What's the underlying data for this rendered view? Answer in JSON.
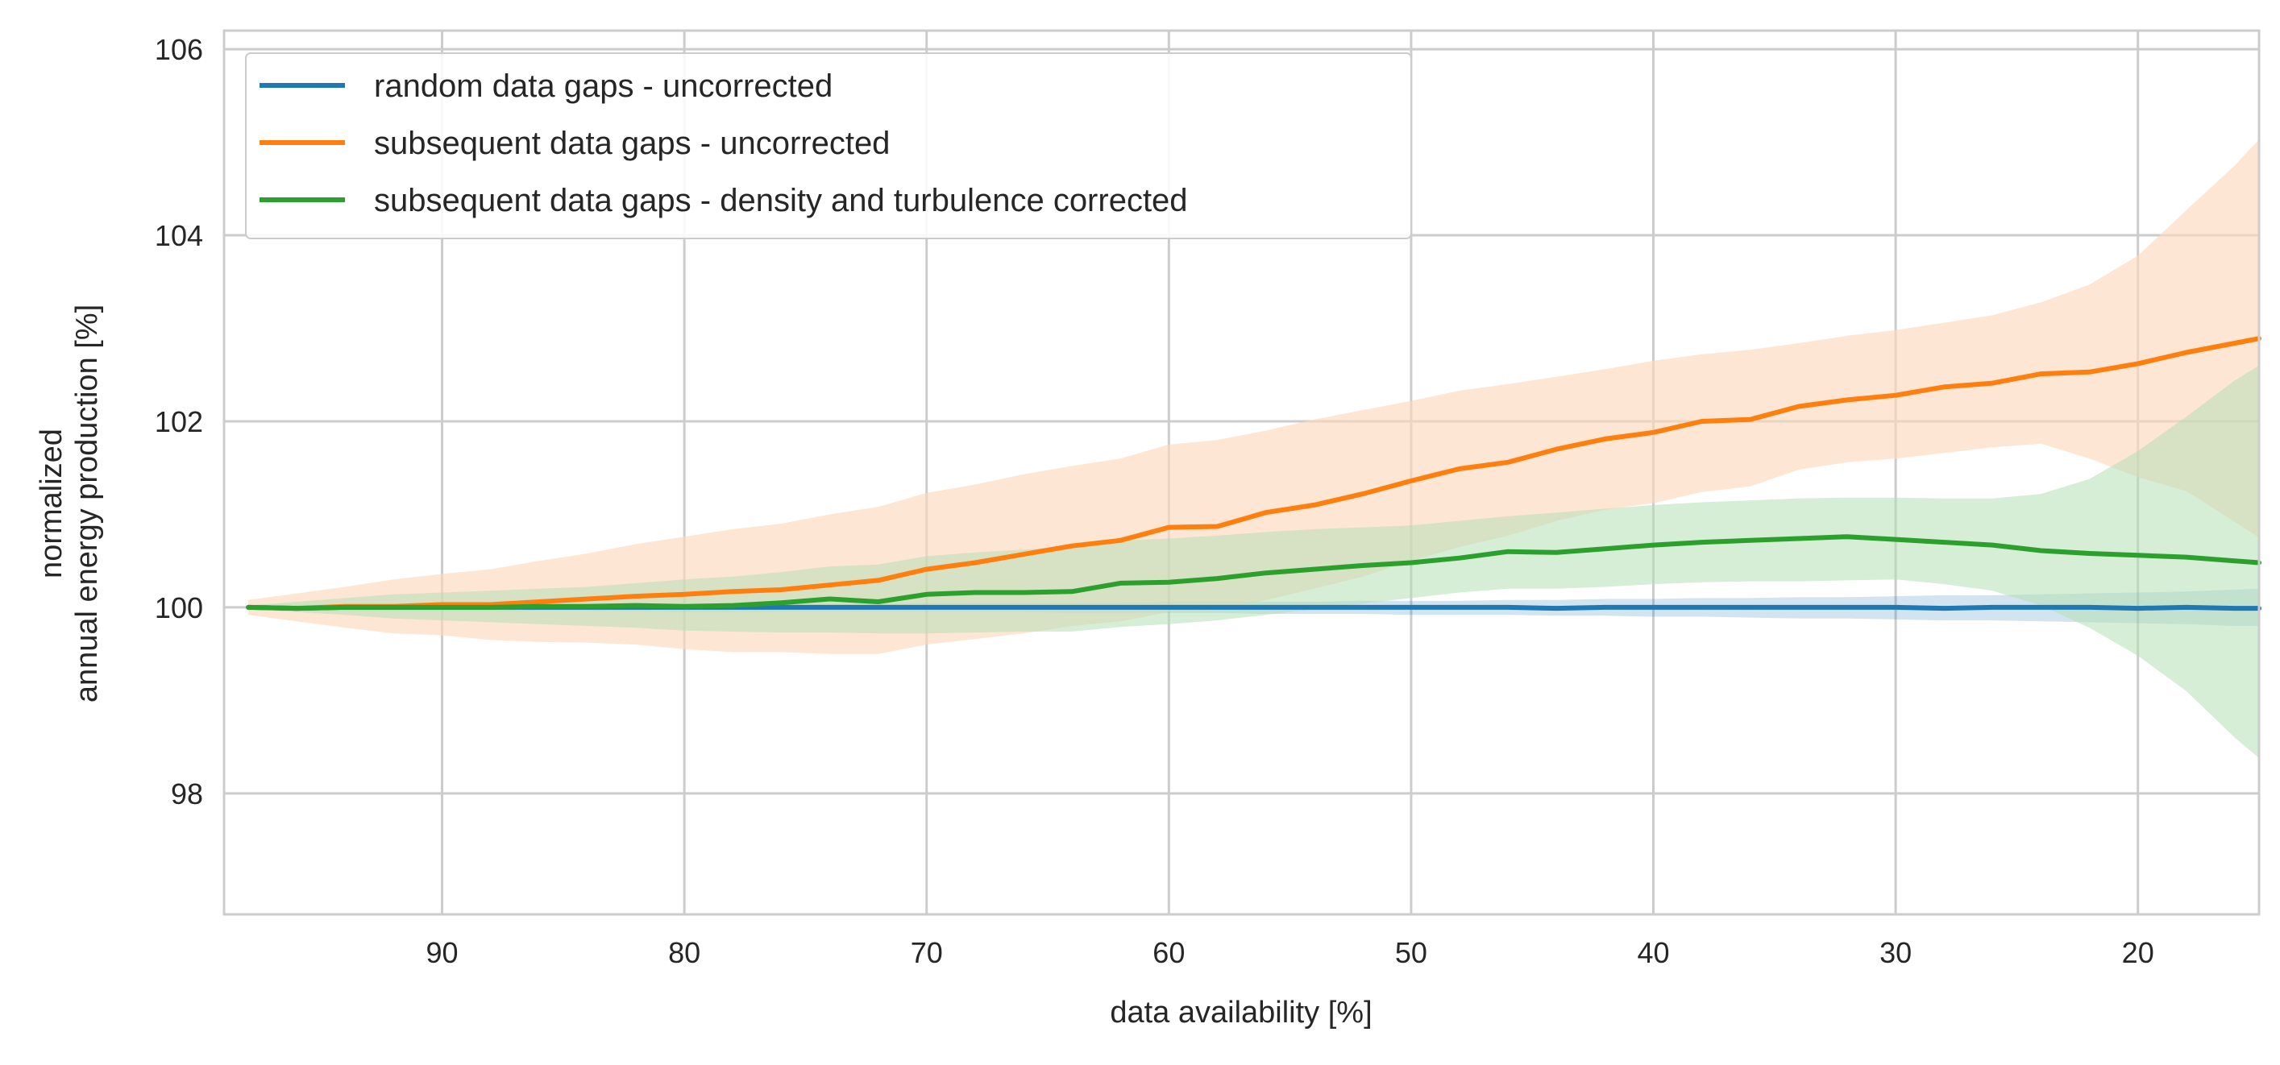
{
  "chart_data": {
    "type": "line",
    "xlabel": "data availability [%]",
    "ylabel_lines": [
      "normalized",
      "annual energy production [%]"
    ],
    "xlim": [
      99,
      15
    ],
    "ylim": [
      96.7,
      106.2
    ],
    "xticks": [
      90,
      80,
      70,
      60,
      50,
      40,
      30,
      20
    ],
    "yticks": [
      98,
      100,
      102,
      104,
      106
    ],
    "grid": true,
    "legend_position": "top-left",
    "x": [
      98,
      96,
      94,
      92,
      90,
      88,
      86,
      84,
      82,
      80,
      78,
      76,
      74,
      72,
      70,
      68,
      66,
      64,
      62,
      60,
      58,
      56,
      54,
      52,
      50,
      48,
      46,
      44,
      42,
      40,
      38,
      36,
      34,
      32,
      30,
      28,
      26,
      24,
      22,
      20,
      18,
      16,
      15
    ],
    "series": [
      {
        "name": "random data gaps - uncorrected",
        "color": "#1f77b4",
        "values": [
          100.0,
          99.99,
          100.0,
          100.0,
          100.0,
          100.0,
          100.0,
          100.0,
          100.0,
          100.0,
          100.0,
          100.0,
          100.0,
          100.0,
          100.0,
          100.0,
          100.0,
          100.0,
          100.0,
          100.0,
          100.0,
          100.0,
          100.0,
          100.0,
          100.0,
          100.0,
          100.0,
          99.99,
          100.0,
          100.0,
          100.0,
          100.0,
          100.0,
          100.0,
          100.0,
          99.99,
          100.0,
          100.0,
          100.0,
          99.99,
          100.0,
          99.99,
          99.99
        ],
        "lower": [
          99.97,
          99.96,
          99.96,
          99.96,
          99.96,
          99.96,
          99.96,
          99.96,
          99.96,
          99.95,
          99.95,
          99.95,
          99.95,
          99.95,
          99.95,
          99.95,
          99.95,
          99.94,
          99.94,
          99.94,
          99.94,
          99.93,
          99.93,
          99.93,
          99.92,
          99.92,
          99.92,
          99.91,
          99.91,
          99.9,
          99.9,
          99.89,
          99.88,
          99.88,
          99.87,
          99.86,
          99.86,
          99.85,
          99.84,
          99.83,
          99.82,
          99.8,
          99.8
        ],
        "upper": [
          100.03,
          100.03,
          100.03,
          100.03,
          100.03,
          100.03,
          100.03,
          100.04,
          100.04,
          100.04,
          100.04,
          100.04,
          100.04,
          100.04,
          100.05,
          100.05,
          100.05,
          100.05,
          100.05,
          100.06,
          100.06,
          100.06,
          100.06,
          100.07,
          100.07,
          100.07,
          100.08,
          100.08,
          100.09,
          100.09,
          100.1,
          100.1,
          100.11,
          100.11,
          100.12,
          100.13,
          100.13,
          100.14,
          100.15,
          100.16,
          100.17,
          100.19,
          100.2
        ]
      },
      {
        "name": "subsequent data gaps - uncorrected",
        "color": "#ff7f0e",
        "band_color": "#fdd9bd",
        "values": [
          100.0,
          99.99,
          100.01,
          100.01,
          100.03,
          100.03,
          100.06,
          100.09,
          100.12,
          100.14,
          100.17,
          100.19,
          100.24,
          100.29,
          100.41,
          100.48,
          100.57,
          100.66,
          100.72,
          100.86,
          100.87,
          101.02,
          101.1,
          101.22,
          101.36,
          101.49,
          101.56,
          101.7,
          101.81,
          101.88,
          102.0,
          102.02,
          102.16,
          102.23,
          102.28,
          102.37,
          102.41,
          102.51,
          102.53,
          102.62,
          102.74,
          102.84,
          102.89
        ],
        "lower": [
          99.92,
          99.85,
          99.78,
          99.72,
          99.7,
          99.65,
          99.63,
          99.62,
          99.6,
          99.55,
          99.52,
          99.52,
          99.5,
          99.5,
          99.6,
          99.66,
          99.72,
          99.8,
          99.85,
          99.95,
          99.96,
          100.08,
          100.2,
          100.33,
          100.5,
          100.65,
          100.77,
          100.93,
          101.05,
          101.12,
          101.24,
          101.3,
          101.48,
          101.56,
          101.6,
          101.66,
          101.72,
          101.76,
          101.6,
          101.4,
          101.25,
          100.92,
          100.75
        ],
        "upper": [
          100.08,
          100.15,
          100.22,
          100.3,
          100.36,
          100.41,
          100.5,
          100.58,
          100.68,
          100.76,
          100.84,
          100.9,
          101.0,
          101.08,
          101.23,
          101.32,
          101.43,
          101.52,
          101.6,
          101.75,
          101.8,
          101.9,
          102.02,
          102.12,
          102.22,
          102.33,
          102.4,
          102.48,
          102.56,
          102.65,
          102.72,
          102.77,
          102.84,
          102.92,
          102.98,
          103.06,
          103.14,
          103.28,
          103.47,
          103.78,
          104.27,
          104.75,
          105.03
        ]
      },
      {
        "name": "subsequent data gaps - density and turbulence corrected",
        "color": "#2ca02c",
        "band_color": "#b4dfb4",
        "values": [
          100.0,
          99.99,
          100.0,
          100.0,
          100.0,
          100.0,
          100.01,
          100.01,
          100.02,
          100.01,
          100.02,
          100.05,
          100.09,
          100.06,
          100.14,
          100.16,
          100.16,
          100.17,
          100.26,
          100.27,
          100.31,
          100.37,
          100.41,
          100.45,
          100.48,
          100.53,
          100.6,
          100.59,
          100.63,
          100.67,
          100.7,
          100.72,
          100.74,
          100.76,
          100.73,
          100.7,
          100.67,
          100.61,
          100.58,
          100.56,
          100.54,
          100.5,
          100.48
        ],
        "lower": [
          99.98,
          99.95,
          99.92,
          99.88,
          99.86,
          99.84,
          99.82,
          99.8,
          99.78,
          99.75,
          99.74,
          99.73,
          99.73,
          99.72,
          99.72,
          99.73,
          99.74,
          99.74,
          99.79,
          99.82,
          99.86,
          99.92,
          99.98,
          100.04,
          100.1,
          100.16,
          100.2,
          100.2,
          100.22,
          100.25,
          100.27,
          100.28,
          100.28,
          100.29,
          100.3,
          100.25,
          100.18,
          100.02,
          99.78,
          99.48,
          99.1,
          98.6,
          98.38
        ],
        "upper": [
          100.02,
          100.06,
          100.1,
          100.14,
          100.16,
          100.18,
          100.2,
          100.22,
          100.26,
          100.3,
          100.33,
          100.38,
          100.44,
          100.46,
          100.55,
          100.59,
          100.62,
          100.66,
          100.72,
          100.74,
          100.77,
          100.81,
          100.84,
          100.86,
          100.88,
          100.93,
          100.98,
          101.02,
          101.06,
          101.1,
          101.13,
          101.15,
          101.17,
          101.18,
          101.18,
          101.17,
          101.17,
          101.22,
          101.38,
          101.68,
          102.05,
          102.44,
          102.6
        ]
      }
    ]
  }
}
